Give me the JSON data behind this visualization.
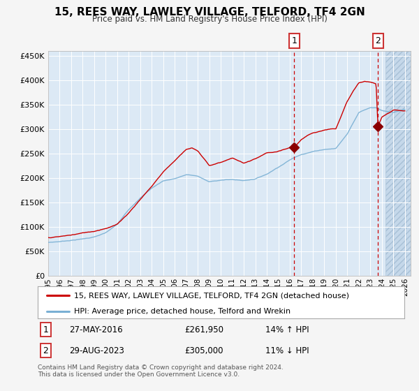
{
  "title": "15, REES WAY, LAWLEY VILLAGE, TELFORD, TF4 2GN",
  "subtitle": "Price paid vs. HM Land Registry's House Price Index (HPI)",
  "ytick_values": [
    0,
    50000,
    100000,
    150000,
    200000,
    250000,
    300000,
    350000,
    400000,
    450000
  ],
  "ylim": [
    0,
    460000
  ],
  "xlim_start": 1995.0,
  "xlim_end": 2026.5,
  "red_line_color": "#cc0000",
  "blue_line_color": "#7ab0d4",
  "bg_color": "#dce9f5",
  "fig_bg_color": "#f5f5f5",
  "grid_color": "#ffffff",
  "marker1_x": 2016.38,
  "marker1_y": 261950,
  "marker2_x": 2023.66,
  "marker2_y": 305000,
  "vline1_x": 2016.38,
  "vline2_x": 2023.66,
  "annotation1_date": "27-MAY-2016",
  "annotation1_price": "£261,950",
  "annotation1_hpi": "14% ↑ HPI",
  "annotation2_date": "29-AUG-2023",
  "annotation2_price": "£305,000",
  "annotation2_hpi": "11% ↓ HPI",
  "legend_line1": "15, REES WAY, LAWLEY VILLAGE, TELFORD, TF4 2GN (detached house)",
  "legend_line2": "HPI: Average price, detached house, Telford and Wrekin",
  "footer": "Contains HM Land Registry data © Crown copyright and database right 2024.\nThis data is licensed under the Open Government Licence v3.0.",
  "xtick_years": [
    1995,
    1996,
    1997,
    1998,
    1999,
    2000,
    2001,
    2002,
    2003,
    2004,
    2005,
    2006,
    2007,
    2008,
    2009,
    2010,
    2011,
    2012,
    2013,
    2014,
    2015,
    2016,
    2017,
    2018,
    2019,
    2020,
    2021,
    2022,
    2023,
    2024,
    2025,
    2026
  ],
  "hpi_key_x": [
    1995,
    1996,
    1997,
    1998,
    1999,
    2000,
    2001,
    2002,
    2003,
    2004,
    2005,
    2006,
    2007,
    2008,
    2009,
    2010,
    2011,
    2012,
    2013,
    2014,
    2015,
    2016,
    2017,
    2018,
    2019,
    2020,
    2021,
    2022,
    2023,
    2023.5,
    2024,
    2024.5,
    2025,
    2026
  ],
  "hpi_key_y": [
    68000,
    70000,
    73000,
    76000,
    80000,
    88000,
    105000,
    135000,
    160000,
    180000,
    195000,
    200000,
    208000,
    205000,
    193000,
    197000,
    198000,
    196000,
    200000,
    210000,
    225000,
    240000,
    252000,
    258000,
    263000,
    265000,
    295000,
    340000,
    350000,
    350000,
    345000,
    342000,
    340000,
    345000
  ],
  "red_key_x": [
    1995,
    1996,
    1997,
    1998,
    1999,
    2000,
    2001,
    2002,
    2003,
    2004,
    2005,
    2006,
    2007,
    2007.5,
    2008,
    2009,
    2010,
    2011,
    2012,
    2013,
    2014,
    2015,
    2016,
    2016.4,
    2017,
    2018,
    2019,
    2020,
    2021,
    2021.5,
    2022,
    2022.5,
    2023,
    2023.5,
    2023.66,
    2024,
    2025,
    2026
  ],
  "red_key_y": [
    78000,
    80000,
    83000,
    87000,
    91000,
    98000,
    106000,
    130000,
    158000,
    185000,
    215000,
    238000,
    262000,
    265000,
    258000,
    228000,
    235000,
    244000,
    233000,
    241000,
    252000,
    254000,
    261000,
    261950,
    278000,
    291000,
    298000,
    302000,
    358000,
    378000,
    395000,
    398000,
    396000,
    392000,
    305000,
    325000,
    340000,
    338000
  ]
}
